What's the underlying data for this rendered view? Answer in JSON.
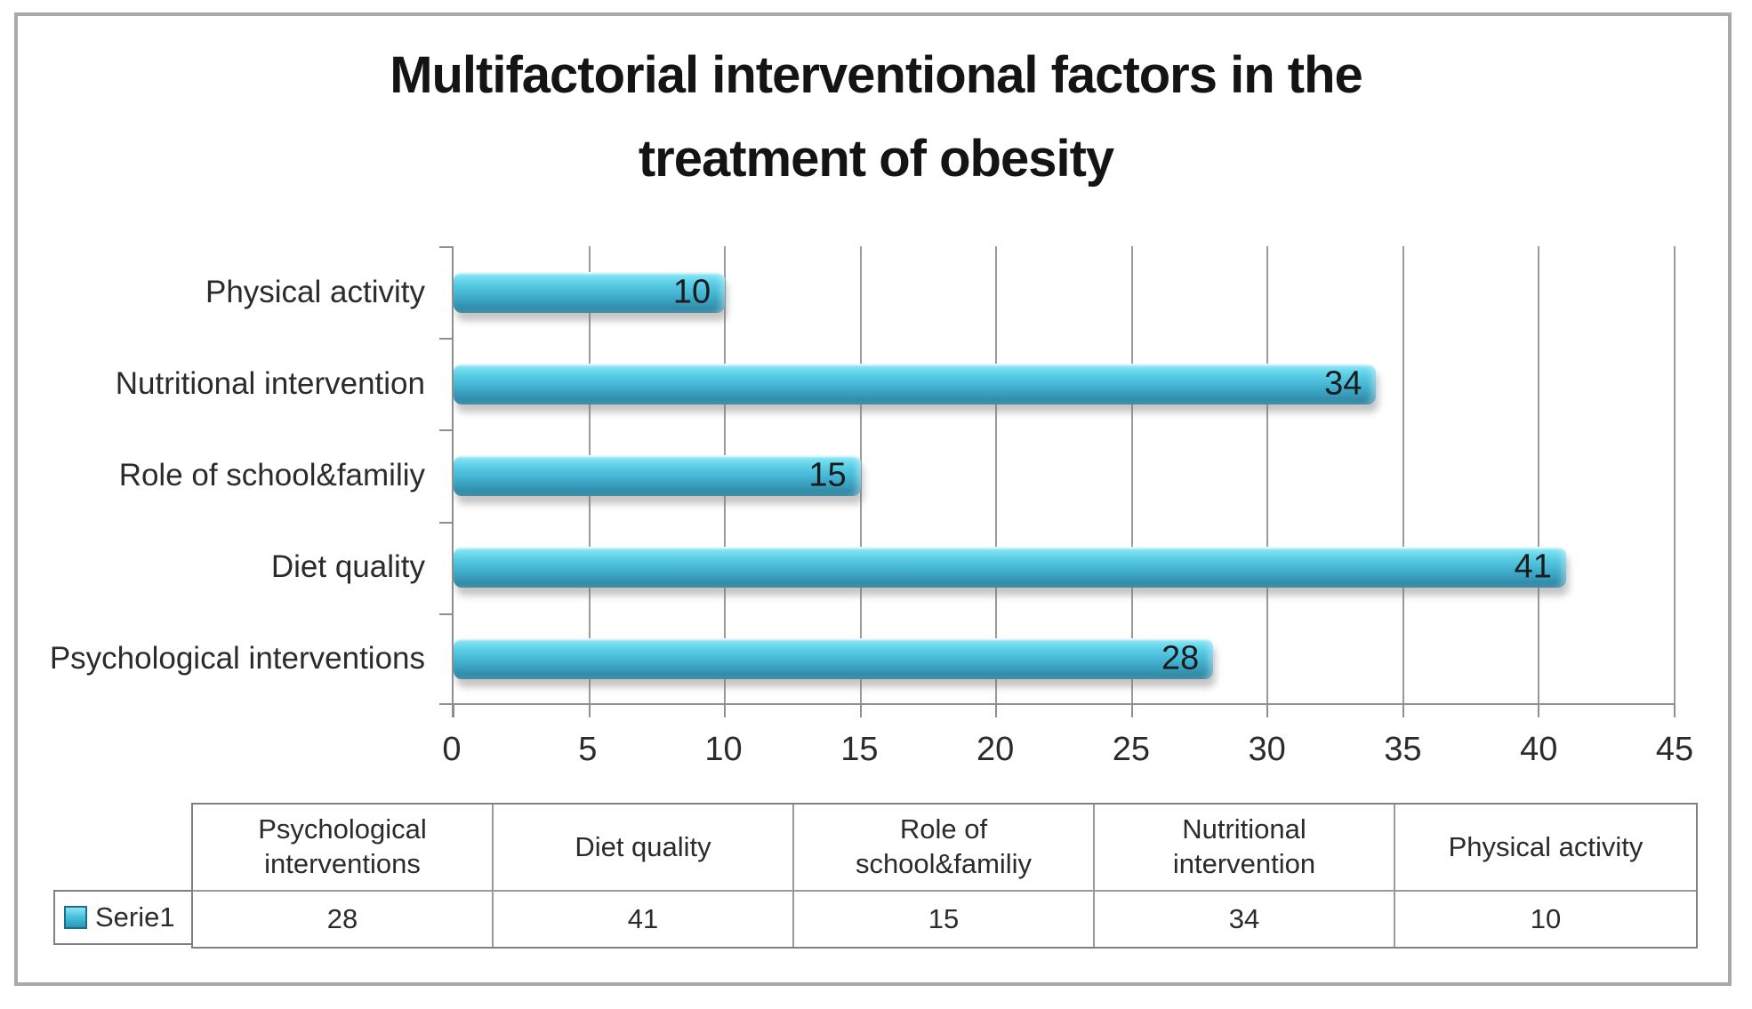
{
  "chart_data": {
    "type": "bar",
    "orientation": "horizontal",
    "title": "Multifactorial interventional factors in the treatment of obesity",
    "title_lines": [
      "Multifactorial interventional factors in the",
      "treatment of obesity"
    ],
    "categories": [
      "Psychological interventions",
      "Diet quality",
      "Role of school&familiy",
      "Nutritional intervention",
      "Physical activity"
    ],
    "series": [
      {
        "name": "Serie1",
        "values": [
          28,
          41,
          15,
          34,
          10
        ]
      }
    ],
    "rows_top_to_bottom": [
      {
        "label": "Physical activity",
        "value": 10
      },
      {
        "label": "Nutritional intervention",
        "value": 34
      },
      {
        "label": "Role of school&familiy",
        "value": 15
      },
      {
        "label": "Diet quality",
        "value": 41
      },
      {
        "label": "Psychological interventions",
        "value": 28
      }
    ],
    "x_ticks": [
      0,
      5,
      10,
      15,
      20,
      25,
      30,
      35,
      40,
      45
    ],
    "xlim": [
      0,
      45
    ],
    "grid": true,
    "value_label_position": "inside-end",
    "legend_position": "bottom-table",
    "bar_color": "#45bcd9",
    "bar_color_light": "#7de2f3",
    "bar_color_dark": "#2d84a1",
    "gridline_color": "#9a9a9a"
  },
  "data_table": {
    "legend": {
      "series_label": "Serie1",
      "key_color": "#45bcd9"
    },
    "columns": [
      {
        "header": "Psychological\ninterventions",
        "value": "28"
      },
      {
        "header": "Diet quality",
        "value": "41"
      },
      {
        "header": "Role of\nschool&familiy",
        "value": "15"
      },
      {
        "header": "Nutritional\nintervention",
        "value": "34"
      },
      {
        "header": "Physical activity",
        "value": "10"
      }
    ]
  }
}
